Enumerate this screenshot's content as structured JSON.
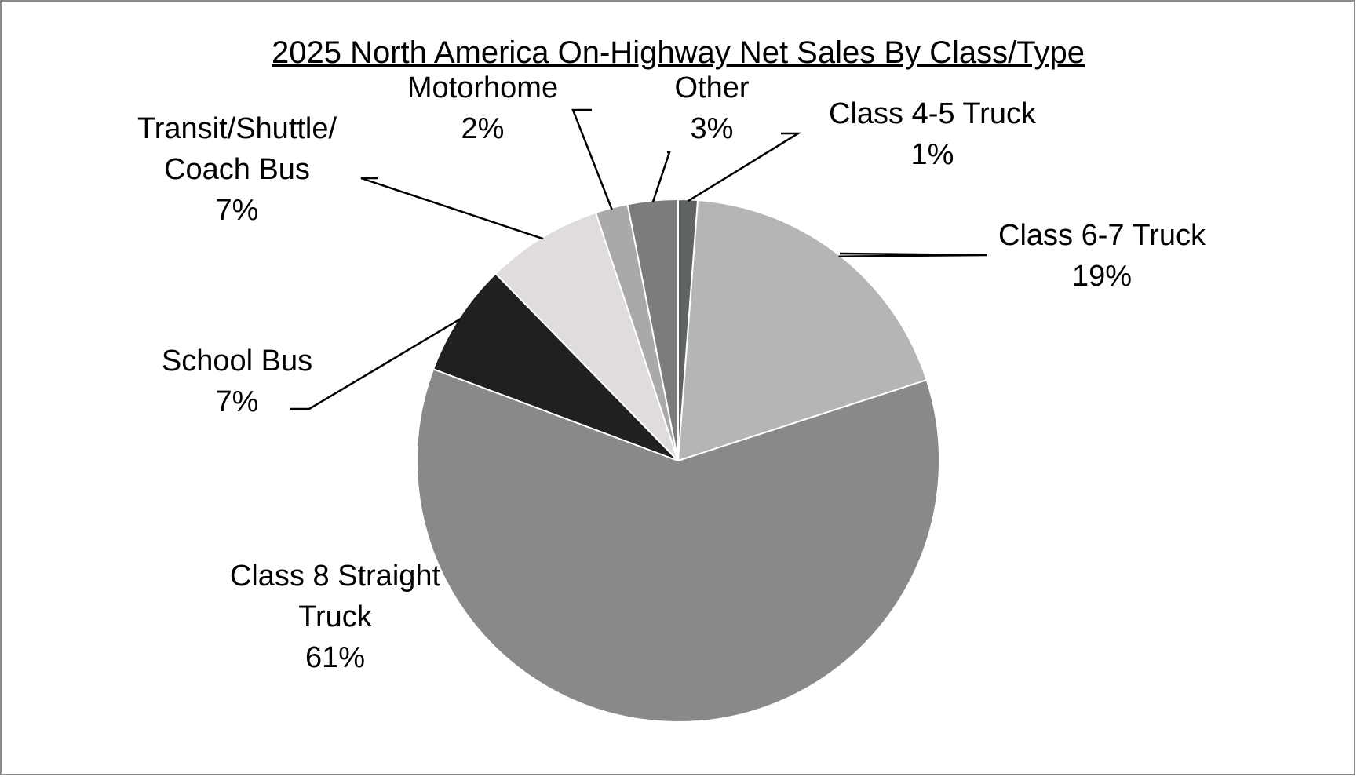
{
  "chart_data": {
    "type": "pie",
    "title": "2025 North America On-Highway Net Sales By Class/Type",
    "start_angle_deg": 0,
    "direction": "clockwise",
    "slices": [
      {
        "label_lines": [
          "Class 4-5 Truck"
        ],
        "value_label": "1%",
        "value": 1.2,
        "color": "#5f6363"
      },
      {
        "label_lines": [
          "Class 6-7 Truck"
        ],
        "value_label": "19%",
        "value": 18.8,
        "color": "#b5b5b5"
      },
      {
        "label_lines": [
          "Class 8 Straight",
          "Truck"
        ],
        "value_label": "61%",
        "value": 60.7,
        "color": "#878a88"
      },
      {
        "label_lines": [
          "School Bus"
        ],
        "value_label": "7%",
        "value": 7.0,
        "color": "#1f2120"
      },
      {
        "label_lines": [
          "Transit/Shuttle/",
          "Coach Bus"
        ],
        "value_label": "7%",
        "value": 7.2,
        "color": "#e0dcdd"
      },
      {
        "label_lines": [
          "Motorhome"
        ],
        "value_label": "2%",
        "value": 2.0,
        "color": "#a9a8ab"
      },
      {
        "label_lines": [
          "Other"
        ],
        "value_label": "3%",
        "value": 3.1,
        "color": "#7c7c7e"
      }
    ]
  }
}
